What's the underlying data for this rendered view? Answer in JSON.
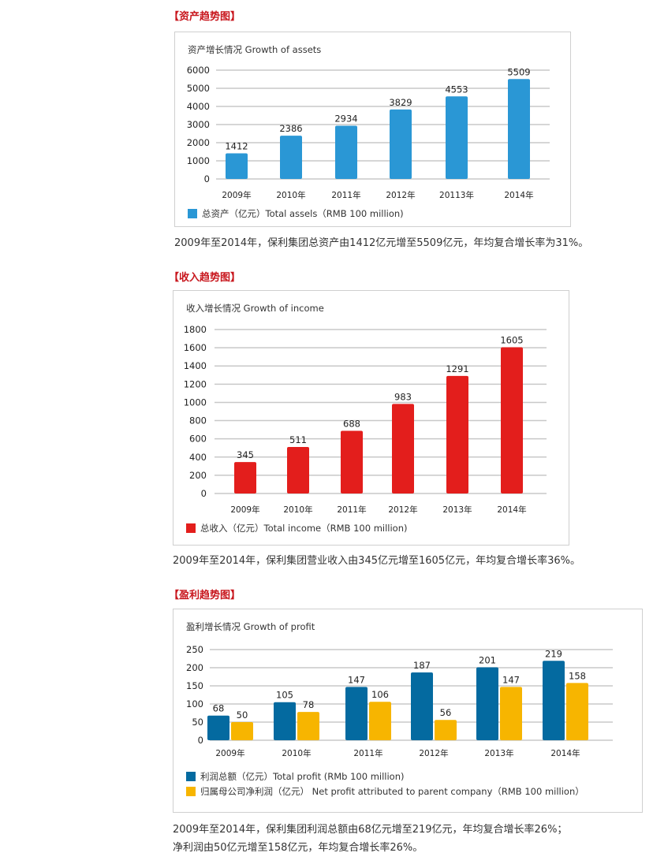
{
  "sections": [
    {
      "heading": "【资产趋势图】",
      "caption": "2009年至2014年，保利集团总资产由1412亿元增至5509亿元，年均复合增长率为31%。",
      "colors": [
        "#2a97d5"
      ],
      "chart_data": {
        "type": "bar",
        "title": "资产增长情况 Growth of assets",
        "categories": [
          "2009年",
          "2010年",
          "2011年",
          "2012年",
          "20113年",
          "2014年"
        ],
        "series": [
          {
            "name": "总资产（亿元）Total assels（RMB 100 million)",
            "values": [
              1412,
              2386,
              2934,
              3829,
              4553,
              5509
            ]
          }
        ],
        "ylim": [
          0,
          6000
        ],
        "yticks": [
          "0",
          "1000",
          "2000",
          "3000",
          "4000",
          "5000",
          "6000"
        ],
        "tick_step": 1000,
        "grid": true,
        "legend_position": "bottom-left"
      }
    },
    {
      "heading": "【收入趋势图】",
      "caption": "2009年至2014年，保利集团营业收入由345亿元增至1605亿元，年均复合增长率36%。",
      "colors": [
        "#e31e1c"
      ],
      "chart_data": {
        "type": "bar",
        "title": "收入增长情况 Growth of income",
        "categories": [
          "2009年",
          "2010年",
          "2011年",
          "2012年",
          "2013年",
          "2014年"
        ],
        "series": [
          {
            "name": "总收入（亿元）Total income（RMB 100 million)",
            "values": [
              345,
              511,
              688,
              983,
              1291,
              1605
            ]
          }
        ],
        "ylim": [
          0,
          1800
        ],
        "yticks": [
          "0",
          "200",
          "400",
          "600",
          "800",
          "1000",
          "1200",
          "1400",
          "1600",
          "1800"
        ],
        "tick_step": 200,
        "grid": true,
        "legend_position": "bottom-left"
      }
    },
    {
      "heading": "【盈利趋势图】",
      "caption_lines": [
        "2009年至2014年，保利集团利润总额由68亿元增至219亿元，年均复合增长率26%；",
        "净利润由50亿元增至158亿元，年均复合增长率26%。"
      ],
      "colors": [
        "#046aa0",
        "#f7b500"
      ],
      "chart_data": {
        "type": "bar",
        "title": "盈利增长情况 Growth of profit",
        "categories": [
          "2009年",
          "2010年",
          "2011年",
          "2012年",
          "2013年",
          "2014年"
        ],
        "series": [
          {
            "name": "利润总额（亿元）Total profit (RMb 100 million)",
            "values": [
              68,
              105,
              147,
              187,
              201,
              219
            ]
          },
          {
            "name": "归属母公司净利润（亿元） Net profit attributed to parent company（RMB 100 million）",
            "values": [
              50,
              78,
              106,
              56,
              147,
              158
            ]
          }
        ],
        "ylim": [
          0,
          250
        ],
        "yticks": [
          "0",
          "50",
          "100",
          "150",
          "200",
          "250"
        ],
        "tick_step": 50,
        "grid": true,
        "legend_position": "bottom-left"
      }
    }
  ]
}
